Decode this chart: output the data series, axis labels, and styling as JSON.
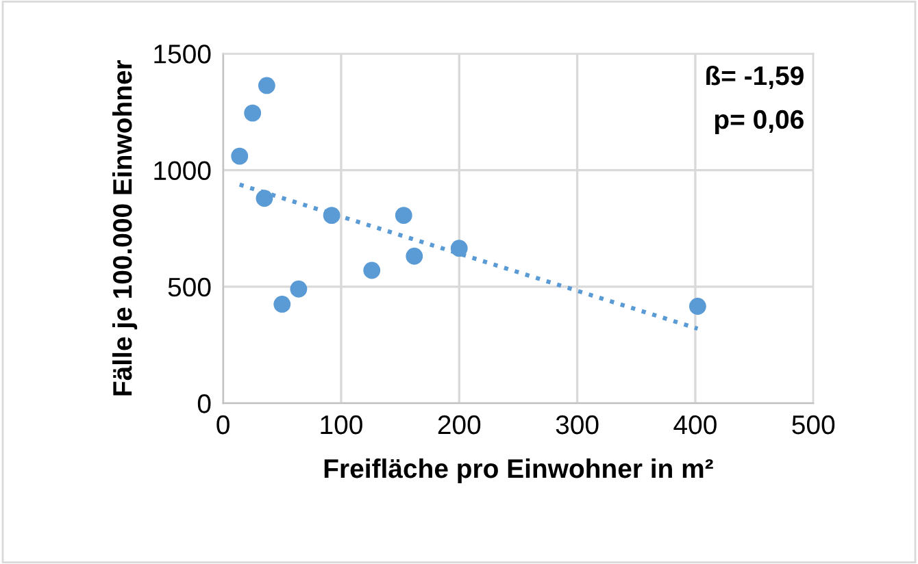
{
  "chart_data": {
    "type": "scatter",
    "xlabel": "Freifläche pro Einwohner in m²",
    "ylabel": "Fälle je 100.000 Einwohner",
    "xlim": [
      0,
      500
    ],
    "xticks": [
      0,
      100,
      200,
      300,
      400,
      500
    ],
    "ylim": [
      0,
      1500
    ],
    "yticks": [
      0,
      500,
      1000,
      1500
    ],
    "grid": true,
    "annotations": [
      "ß= -1,59",
      "p= 0,06"
    ],
    "series": [
      {
        "marker": "circle",
        "color": "#5b9bd5",
        "x": [
          14,
          25,
          37,
          35,
          50,
          64,
          92,
          126,
          153,
          162,
          200,
          402
        ],
        "values": [
          1060,
          1245,
          1363,
          879,
          425,
          490,
          806,
          570,
          806,
          631,
          665,
          416
        ]
      },
      {
        "type": "line",
        "marker": "none",
        "color": "#5b9bd5",
        "line_style": "dotted",
        "x": [
          14,
          402
        ],
        "values": [
          938,
          320
        ]
      }
    ]
  }
}
